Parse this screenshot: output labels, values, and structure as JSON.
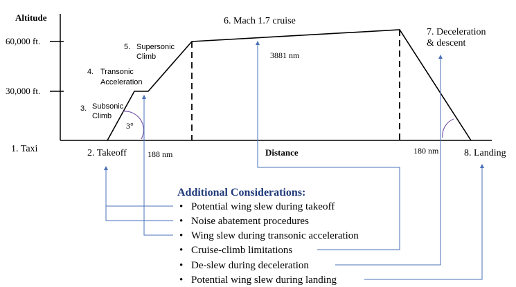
{
  "axes": {
    "y_title": "Altitude",
    "x_title": "Distance",
    "y_ticks": [
      "60,000 ft.",
      "30,000 ft."
    ]
  },
  "phases": {
    "taxi": "1.  Taxi",
    "takeoff": "2.  Takeoff",
    "subsonic_num": "3.",
    "subsonic_line1": "Subsonic",
    "subsonic_line2": "Climb",
    "transonic_num": "4.",
    "transonic_line1": "Transonic",
    "transonic_line2": "Acceleration",
    "supersonic_num": "5.",
    "supersonic_line1": "Supersonic",
    "supersonic_line2": "Climb",
    "cruise": "6.  Mach 1.7 cruise",
    "descent_line1": "7.  Deceleration",
    "descent_line2": "& descent",
    "landing": "8.  Landing"
  },
  "annotations": {
    "climb_angle": "3°",
    "climb_distance": "188 nm",
    "cruise_distance": "3881 nm",
    "descent_distance": "180 nm"
  },
  "considerations": {
    "heading": "Additional Considerations:",
    "bullet": "•",
    "items": [
      "Potential wing slew during takeoff",
      "Noise abatement procedures",
      "Wing slew during transonic acceleration",
      "Cruise-climb limitations",
      "De-slew during deceleration",
      "Potential wing slew during landing"
    ]
  },
  "colors": {
    "leader": "#4a72b8",
    "heading": "#1f3a7a",
    "arc": "#7a5aa8"
  }
}
